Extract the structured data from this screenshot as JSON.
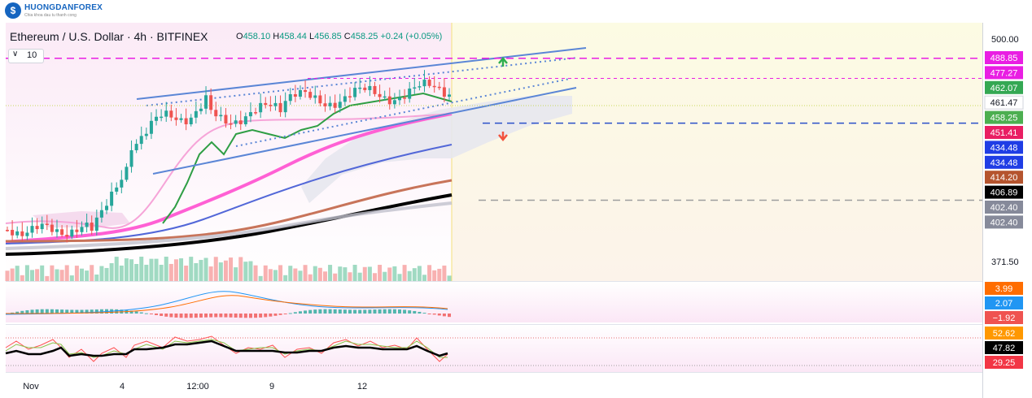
{
  "brand": {
    "name": "HUONGDANFOREX",
    "tagline": "Chia khoa dau tu thanh cong"
  },
  "header": {
    "title": "Ethereum / U.S. Dollar · 4h · BITFINEX",
    "ohlc": {
      "o_label": "O",
      "o": "458.10",
      "h_label": "H",
      "h": "458.44",
      "l_label": "L",
      "l": "456.85",
      "c_label": "C",
      "c": "458.25",
      "change": "+0.24 (+0.05%)"
    },
    "indicator_toggle": {
      "value": "10"
    }
  },
  "chart_data": [
    {
      "type": "candlestick",
      "title": "Ethereum / U.S. Dollar · 4h · BITFINEX",
      "ohlc": {
        "open": 458.1,
        "high": 458.44,
        "low": 456.85,
        "close": 458.25
      },
      "x_ticks": [
        "Nov",
        "4",
        "12:00",
        "9",
        "12"
      ],
      "y_ticks": [
        "500.00",
        "371.50"
      ],
      "price_labels": [
        {
          "value": "488.85",
          "color": "#e91ee3"
        },
        {
          "value": "477.27",
          "color": "#e91ee3"
        },
        {
          "value": "462.07",
          "color": "#34a853"
        },
        {
          "value": "461.47",
          "color": "#ffffff"
        },
        {
          "value": "458.25",
          "color": "#4caf50"
        },
        {
          "value": "451.41",
          "color": "#e91e63"
        },
        {
          "value": "434.48",
          "color": "#1f3de5"
        },
        {
          "value": "434.48",
          "color": "#1f3de5"
        },
        {
          "value": "414.20",
          "color": "#b5542e"
        },
        {
          "value": "406.89",
          "color": "#000000"
        },
        {
          "value": "402.40",
          "color": "#868a9a"
        },
        {
          "value": "402.40",
          "color": "#868a9a"
        }
      ],
      "horizontal_levels": [
        {
          "value": 488.85,
          "color": "#e91ee3"
        },
        {
          "value": 477.27,
          "color": "#e91ee3"
        },
        {
          "value": 451.41,
          "color": "#2a4fc9"
        },
        {
          "value": 406.89,
          "color": "#9e9e9e"
        }
      ],
      "ylim": [
        365,
        505
      ]
    },
    {
      "type": "line",
      "panel": "macd",
      "value_labels": [
        {
          "value": "3.99",
          "color": "#ff6d00"
        },
        {
          "value": "2.07",
          "color": "#2196f3"
        },
        {
          "value": "−1.92",
          "color": "#ef5350"
        }
      ]
    },
    {
      "type": "line",
      "panel": "oscillator",
      "value_labels": [
        {
          "value": "52.62",
          "color": "#ff9800"
        },
        {
          "value": "47.82",
          "color": "#000000"
        },
        {
          "value": "29.25",
          "color": "#f23645"
        }
      ]
    }
  ]
}
